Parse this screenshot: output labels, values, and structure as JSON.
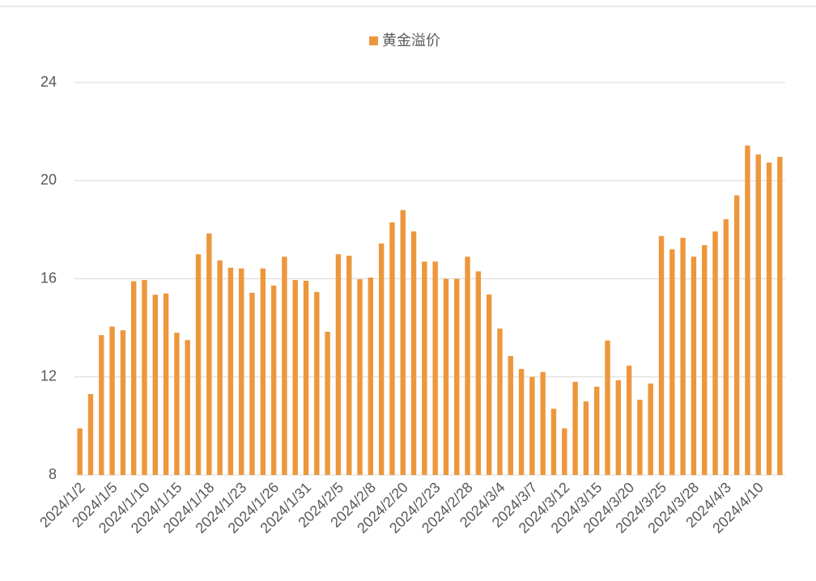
{
  "chart_data": {
    "type": "bar",
    "legend": "top",
    "categories": [
      "2024/1/2",
      null,
      null,
      "2024/1/5",
      null,
      null,
      "2024/1/10",
      null,
      null,
      "2024/1/15",
      null,
      null,
      "2024/1/18",
      null,
      null,
      "2024/1/23",
      null,
      null,
      "2024/1/26",
      null,
      null,
      "2024/1/31",
      null,
      null,
      "2024/2/5",
      null,
      null,
      "2024/2/8",
      null,
      null,
      "2024/2/20",
      null,
      null,
      "2024/2/23",
      null,
      null,
      "2024/2/28",
      null,
      null,
      "2024/3/4",
      null,
      null,
      "2024/3/7",
      null,
      null,
      "2024/3/12",
      null,
      null,
      "2024/3/15",
      null,
      null,
      "2024/3/20",
      null,
      null,
      "2024/3/25",
      null,
      null,
      "2024/3/28",
      null,
      null,
      "2024/4/3",
      null,
      null,
      "2024/4/10",
      null,
      null
    ],
    "series": [
      {
        "name": "黄金溢价",
        "color": "#ed973c",
        "values": [
          9.9,
          11.3,
          13.7,
          14.05,
          13.9,
          15.9,
          15.95,
          15.35,
          15.4,
          13.8,
          13.5,
          17.0,
          17.85,
          16.75,
          16.45,
          16.42,
          15.43,
          16.42,
          15.72,
          16.9,
          15.95,
          15.92,
          15.46,
          13.84,
          17.0,
          16.94,
          15.98,
          16.05,
          17.44,
          18.3,
          18.8,
          17.93,
          16.7,
          16.7,
          16.0,
          16.0,
          16.9,
          16.3,
          15.36,
          13.97,
          12.85,
          12.32,
          12.0,
          12.2,
          10.7,
          9.9,
          11.8,
          11.0,
          11.6,
          13.48,
          11.86,
          12.46,
          11.07,
          11.73,
          17.74,
          17.2,
          17.67,
          16.9,
          17.37,
          17.93,
          18.43,
          19.4,
          21.43,
          21.07,
          20.74,
          20.97
        ]
      }
    ],
    "ylim": [
      8,
      24
    ],
    "yticks": [
      8,
      12,
      16,
      20,
      24
    ],
    "grid": true
  }
}
